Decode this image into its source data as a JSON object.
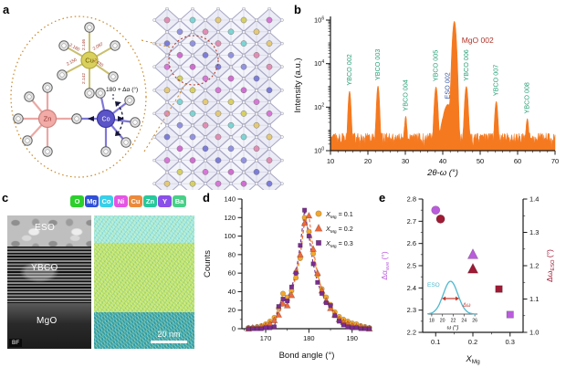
{
  "figure": {
    "panel_labels": {
      "a": "a",
      "b": "b",
      "c": "c",
      "d": "d",
      "e": "e"
    }
  },
  "panel_a": {
    "atoms": [
      {
        "symbol": "Zn",
        "color": "#f2aba6",
        "border": "#cf8480",
        "text_color": "#8f3434"
      },
      {
        "symbol": "Cu",
        "color": "#d9d05e",
        "border": "#b3a93a",
        "text_color": "#6b5d00"
      },
      {
        "symbol": "Co",
        "color": "#5b54c8",
        "border": "#3d37a2",
        "text_color": "#ffffff"
      }
    ],
    "bond_labels": [
      "2.146",
      "2.087",
      "2.160",
      "2.150",
      "2.142",
      "2.430"
    ],
    "angle_annotation": "180 + Δα (°)",
    "dotted_circle_color": "#c8882a",
    "zoom_circle_color": "#b23a2a",
    "lattice_palette": [
      "#e08fb4",
      "#d6d066",
      "#7d7dd8",
      "#7fd4d4",
      "#d678d6",
      "#9393e0",
      "#e3c97a",
      "#cf6fd0"
    ]
  },
  "panel_c": {
    "elements": [
      {
        "symbol": "O",
        "color": "#2ccf2c"
      },
      {
        "symbol": "Mg",
        "color": "#3050d8"
      },
      {
        "symbol": "Co",
        "color": "#38cfe8"
      },
      {
        "symbol": "Ni",
        "color": "#e455e4"
      },
      {
        "symbol": "Cu",
        "color": "#ec8a3c"
      },
      {
        "symbol": "Zn",
        "color": "#28c89c"
      },
      {
        "symbol": "Y",
        "color": "#8a50e8"
      },
      {
        "symbol": "Ba",
        "color": "#48d088"
      }
    ],
    "bf_labels": {
      "eso": "ESO",
      "ybco": "YBCO",
      "mgo": "MgO",
      "mode": "BF"
    },
    "scale_bar": "20 nm"
  },
  "chart_data": [
    {
      "id": "xrd",
      "type": "line",
      "xlabel": "2θ-ω (°)",
      "ylabel": "Intensity (a.u.)",
      "xlim": [
        10,
        70
      ],
      "ylog": true,
      "ylim_exp": [
        0,
        6
      ],
      "xticks": [
        10,
        20,
        30,
        40,
        50,
        60,
        70
      ],
      "ytick_exps": [
        0,
        2,
        4,
        6
      ],
      "curve_color": "#f5791f",
      "baseline_low": 2.2,
      "baseline_high": 6.5,
      "peaks": [
        {
          "label": "YBCO 002",
          "x": 15.1,
          "amp": 550,
          "sigma": 0.22,
          "label_color": "#229d72"
        },
        {
          "label": "YBCO 003",
          "x": 22.7,
          "amp": 950,
          "sigma": 0.22,
          "label_color": "#229d72"
        },
        {
          "label": "YBCO 004",
          "x": 30.1,
          "amp": 35,
          "sigma": 0.2,
          "label_color": "#229d72"
        },
        {
          "label": "YBCO 005",
          "x": 38.2,
          "amp": 850,
          "sigma": 0.26,
          "label_color": "#229d72"
        },
        {
          "label": "ESO 002",
          "x": 41.4,
          "amp": 130,
          "sigma": 0.8,
          "label_color": "#2b4fa3"
        },
        {
          "label": "MgO 002",
          "x": 43.1,
          "amp": 900000,
          "sigma": 0.28,
          "label_color": "#b03428",
          "label_horizontal": true
        },
        {
          "label": "YBCO 006",
          "x": 46.3,
          "amp": 900,
          "sigma": 0.26,
          "label_color": "#229d72"
        },
        {
          "label": "YBCO 007",
          "x": 54.3,
          "amp": 180,
          "sigma": 0.24,
          "label_color": "#229d72"
        },
        {
          "label": "YBCO 008",
          "x": 62.6,
          "amp": 26,
          "sigma": 0.22,
          "label_color": "#229d72"
        }
      ]
    },
    {
      "id": "bond-angle-histogram",
      "type": "scatter",
      "xlabel": "Bond angle (°)",
      "ylabel": "Counts",
      "xlim": [
        164.5,
        194.5
      ],
      "ylim": [
        0,
        140
      ],
      "xticks": [
        170,
        180,
        190
      ],
      "ytick_step": 20,
      "angles": [
        166,
        167,
        168,
        169,
        170,
        171,
        172,
        173,
        174,
        175,
        176,
        177,
        178,
        179,
        180,
        181,
        182,
        183,
        184,
        185,
        186,
        187,
        188,
        189,
        190,
        191,
        192,
        193,
        194
      ],
      "series": [
        {
          "label": "X_Mg = 0.1",
          "marker": "circle",
          "color": "#f2a72e",
          "values": [
            1,
            1,
            2,
            3,
            5,
            8,
            12,
            22,
            38,
            34,
            41,
            55,
            76,
            120,
            105,
            81,
            58,
            43,
            34,
            26,
            18,
            13,
            10,
            8,
            6,
            5,
            3,
            2,
            1
          ]
        },
        {
          "label": "X_Mg = 0.2",
          "marker": "triangle",
          "color": "#ee6a3c",
          "values": [
            0,
            1,
            1,
            2,
            3,
            5,
            9,
            15,
            27,
            25,
            36,
            62,
            80,
            114,
            122,
            86,
            60,
            41,
            30,
            22,
            15,
            10,
            7,
            5,
            3,
            2,
            2,
            1,
            0
          ]
        },
        {
          "label": "X_Mg = 0.3",
          "marker": "square",
          "color": "#7a2e8e",
          "values": [
            0,
            0,
            0,
            0,
            1,
            1,
            2,
            24,
            32,
            30,
            45,
            60,
            90,
            128,
            100,
            70,
            50,
            38,
            28,
            25,
            14,
            8,
            4,
            2,
            1,
            1,
            0,
            0,
            0
          ]
        }
      ]
    },
    {
      "id": "mosaicity",
      "type": "scatter",
      "xlabel": "X_Mg",
      "xlim": [
        0.065,
        0.335
      ],
      "xticks": [
        0.1,
        0.2,
        0.3
      ],
      "left_axis": {
        "label": "Δα_ave (°)",
        "color": "#bb5cdd",
        "lim": [
          2.2,
          2.8
        ],
        "tick_step": 0.1
      },
      "right_axis": {
        "label": "Δω_ESO (°)",
        "color": "#9e1a35",
        "lim": [
          1.0,
          1.4
        ],
        "tick_step": 0.1
      },
      "series": [
        {
          "label": "Δα_ave",
          "axis": "left",
          "color": "#bb5cdd",
          "points": [
            {
              "x": 0.1,
              "y": 2.75,
              "marker": "circle"
            },
            {
              "x": 0.2,
              "y": 2.55,
              "marker": "triangle"
            },
            {
              "x": 0.3,
              "y": 2.28,
              "marker": "square"
            }
          ]
        },
        {
          "label": "Δω_ESO",
          "axis": "right",
          "color": "#9e1a35",
          "points": [
            {
              "x": 0.113,
              "y": 1.34,
              "marker": "circle"
            },
            {
              "x": 0.2,
              "y": 1.19,
              "marker": "triangle"
            },
            {
              "x": 0.27,
              "y": 1.13,
              "marker": "square"
            }
          ]
        }
      ],
      "inset": {
        "label": "ESO",
        "curve_color": "#4db8cf",
        "xticks": [
          18,
          20,
          22,
          24,
          26
        ],
        "xlabel": "ω (°)",
        "peak_center": 21.5,
        "arrow_label": "Δω",
        "arrow_color": "#c0392b"
      }
    }
  ]
}
